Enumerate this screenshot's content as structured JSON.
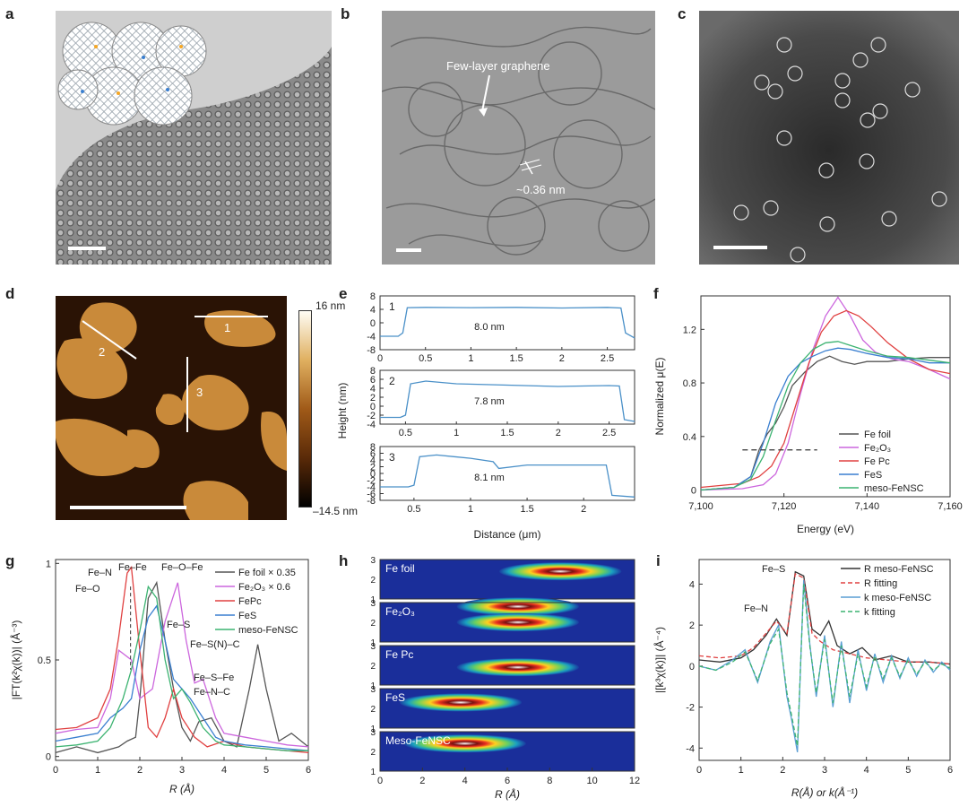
{
  "panels": {
    "a": "a",
    "b": "b",
    "c": "c",
    "d": "d",
    "e": "e",
    "f": "f",
    "g": "g",
    "h": "h",
    "i": "i"
  },
  "panel_b": {
    "annot1": "Few-layer graphene",
    "annot2": "~0.36 nm"
  },
  "panel_d": {
    "scale_top": "16 nm",
    "scale_bottom": "–14.5 nm",
    "line_labels": [
      "1",
      "2",
      "3"
    ]
  },
  "colors": {
    "foil": "#555555",
    "fe2o3": "#cc66dd",
    "fepc": "#e04040",
    "fes": "#3a7fd0",
    "meso": "#3cb371",
    "trace": "#4a90c8"
  },
  "chart_data": [
    {
      "panel": "e",
      "type": "line",
      "xlabel": "Distance (μm)",
      "ylabel": "Height (nm)",
      "subplots": [
        {
          "id": "1",
          "label": "8.0 nm",
          "xlim": [
            0,
            2.8
          ],
          "ylim": [
            -8,
            8
          ],
          "xticks": [
            0,
            0.5,
            1.0,
            1.5,
            2.0,
            2.5
          ],
          "yticks": [
            8,
            4,
            0,
            -4,
            -8
          ],
          "x": [
            0,
            0.2,
            0.25,
            0.3,
            0.5,
            1.0,
            1.5,
            2.0,
            2.5,
            2.65,
            2.7,
            2.8
          ],
          "y": [
            -4,
            -4,
            -3,
            4.5,
            4.6,
            4.5,
            4.6,
            4.4,
            4.6,
            4.4,
            -3,
            -4.5
          ]
        },
        {
          "id": "2",
          "label": "7.8 nm",
          "xlim": [
            0.25,
            2.75
          ],
          "ylim": [
            -4,
            8
          ],
          "xticks": [
            0.5,
            1.0,
            1.5,
            2.0,
            2.5
          ],
          "yticks": [
            8,
            6,
            4,
            2,
            0,
            -2,
            -4
          ],
          "x": [
            0.25,
            0.45,
            0.5,
            0.55,
            0.7,
            1.0,
            1.5,
            2.0,
            2.5,
            2.6,
            2.65,
            2.75
          ],
          "y": [
            -2.5,
            -2.5,
            -2,
            5,
            5.6,
            5,
            4.7,
            4.4,
            4.6,
            4.5,
            -3,
            -3.4
          ]
        },
        {
          "id": "3",
          "label": "8.1 nm",
          "xlim": [
            0.2,
            2.45
          ],
          "ylim": [
            -8,
            8
          ],
          "xticks": [
            0.5,
            1.0,
            1.5,
            2.0
          ],
          "yticks": [
            8,
            6,
            4,
            2,
            0,
            -2,
            -4,
            -6,
            -8
          ],
          "x": [
            0.2,
            0.45,
            0.5,
            0.55,
            0.7,
            1.0,
            1.2,
            1.25,
            1.5,
            2.0,
            2.2,
            2.25,
            2.45
          ],
          "y": [
            -4,
            -4,
            -3.5,
            5,
            5.5,
            4.5,
            3.5,
            1.5,
            2.5,
            2.5,
            2.5,
            -6.5,
            -7
          ]
        }
      ]
    },
    {
      "panel": "f",
      "type": "line",
      "xlabel": "Energy (eV)",
      "ylabel": "Normalized μ(E)",
      "xlim": [
        7100,
        7160
      ],
      "ylim": [
        -0.05,
        1.45
      ],
      "xticks": [
        7100,
        7120,
        7140,
        7160
      ],
      "xtick_labels": [
        "7,100",
        "7,120",
        "7,140",
        "7,160"
      ],
      "yticks": [
        0,
        0.4,
        0.8,
        1.2
      ],
      "legend": "bottom-right",
      "series": [
        {
          "name": "Fe foil",
          "color": "#555555",
          "x": [
            7100,
            7108,
            7112,
            7114,
            7116,
            7118,
            7120,
            7122,
            7125,
            7128,
            7131,
            7134,
            7137,
            7140,
            7145,
            7150,
            7155,
            7160
          ],
          "y": [
            0,
            0.02,
            0.1,
            0.3,
            0.42,
            0.5,
            0.62,
            0.78,
            0.88,
            0.96,
            1.0,
            0.96,
            0.94,
            0.96,
            0.96,
            0.98,
            0.99,
            0.99
          ]
        },
        {
          "name": "Fe₂O₃",
          "color": "#cc66dd",
          "x": [
            7100,
            7110,
            7115,
            7118,
            7121,
            7124,
            7127,
            7130,
            7133,
            7136,
            7139,
            7142,
            7146,
            7150,
            7155,
            7160
          ],
          "y": [
            0,
            0.01,
            0.04,
            0.12,
            0.35,
            0.72,
            1.05,
            1.3,
            1.44,
            1.3,
            1.12,
            1.03,
            0.98,
            0.96,
            0.9,
            0.83
          ]
        },
        {
          "name": "Fe Pc",
          "color": "#e04040",
          "x": [
            7100,
            7110,
            7114,
            7117,
            7120,
            7123,
            7126,
            7129,
            7132,
            7135,
            7138,
            7141,
            7145,
            7150,
            7155,
            7160
          ],
          "y": [
            0.02,
            0.05,
            0.1,
            0.18,
            0.35,
            0.65,
            0.95,
            1.18,
            1.3,
            1.34,
            1.3,
            1.22,
            1.1,
            0.98,
            0.9,
            0.87
          ]
        },
        {
          "name": "FeS",
          "color": "#3a7fd0",
          "x": [
            7100,
            7108,
            7112,
            7115,
            7118,
            7121,
            7124,
            7127,
            7130,
            7133,
            7136,
            7140,
            7145,
            7150,
            7155,
            7160
          ],
          "y": [
            0,
            0.02,
            0.1,
            0.35,
            0.65,
            0.85,
            0.95,
            1.0,
            1.04,
            1.06,
            1.05,
            1.02,
            0.99,
            0.98,
            0.95,
            0.95
          ]
        },
        {
          "name": "meso-FeNSC",
          "color": "#3cb371",
          "x": [
            7100,
            7108,
            7112,
            7115,
            7118,
            7121,
            7124,
            7127,
            7130,
            7133,
            7136,
            7140,
            7145,
            7150,
            7155,
            7160
          ],
          "y": [
            0,
            0.02,
            0.08,
            0.25,
            0.52,
            0.78,
            0.95,
            1.05,
            1.1,
            1.11,
            1.08,
            1.04,
            1.0,
            0.99,
            0.97,
            0.95
          ]
        }
      ],
      "reference_line": {
        "y": 0.3,
        "x": [
          7110,
          7128
        ],
        "style": "dashed"
      }
    },
    {
      "panel": "g",
      "type": "line",
      "xlabel": "R (Å)",
      "ylabel": "|FT(k²χ(k))| (Å⁻³)",
      "xlim": [
        0,
        6
      ],
      "ylim": [
        -0.02,
        1.02
      ],
      "xticks": [
        0,
        1,
        2,
        3,
        4,
        5,
        6
      ],
      "yticks": [
        0,
        0.5,
        1.0
      ],
      "legend": "top-right",
      "series": [
        {
          "name": "Fe foil × 0.35",
          "color": "#555555",
          "x": [
            0,
            0.5,
            1.0,
            1.5,
            1.7,
            1.9,
            2.0,
            2.2,
            2.4,
            2.6,
            2.8,
            3.0,
            3.2,
            3.4,
            3.7,
            4.0,
            4.3,
            4.6,
            4.8,
            5.0,
            5.3,
            5.6,
            6.0
          ],
          "y": [
            0.02,
            0.05,
            0.02,
            0.05,
            0.08,
            0.1,
            0.3,
            0.82,
            0.9,
            0.6,
            0.35,
            0.15,
            0.08,
            0.18,
            0.2,
            0.08,
            0.05,
            0.35,
            0.58,
            0.35,
            0.08,
            0.12,
            0.05
          ]
        },
        {
          "name": "Fe₂O₃ × 0.6",
          "color": "#cc66dd",
          "x": [
            0,
            0.5,
            1.0,
            1.3,
            1.5,
            1.8,
            2.0,
            2.3,
            2.6,
            2.9,
            3.1,
            3.3,
            3.5,
            3.8,
            4.0,
            4.5,
            5.0,
            5.5,
            6.0
          ],
          "y": [
            0.12,
            0.14,
            0.15,
            0.3,
            0.55,
            0.5,
            0.3,
            0.35,
            0.7,
            0.9,
            0.6,
            0.38,
            0.4,
            0.2,
            0.12,
            0.1,
            0.08,
            0.06,
            0.05
          ]
        },
        {
          "name": "FePc",
          "color": "#e04040",
          "x": [
            0,
            0.5,
            1.0,
            1.3,
            1.5,
            1.7,
            1.8,
            2.0,
            2.2,
            2.4,
            2.6,
            2.8,
            3.0,
            3.3,
            3.6,
            4.0,
            4.5,
            5.0,
            5.5,
            6.0
          ],
          "y": [
            0.14,
            0.15,
            0.2,
            0.35,
            0.62,
            0.95,
            0.98,
            0.55,
            0.15,
            0.1,
            0.2,
            0.35,
            0.2,
            0.1,
            0.05,
            0.08,
            0.05,
            0.04,
            0.03,
            0.02
          ]
        },
        {
          "name": "FeS",
          "color": "#3a7fd0",
          "x": [
            0,
            0.5,
            1.0,
            1.3,
            1.6,
            1.8,
            2.0,
            2.2,
            2.4,
            2.6,
            2.8,
            3.0,
            3.2,
            3.5,
            3.8,
            4.0,
            4.5,
            5.0,
            5.5,
            6.0
          ],
          "y": [
            0.08,
            0.1,
            0.12,
            0.2,
            0.25,
            0.3,
            0.55,
            0.72,
            0.78,
            0.6,
            0.4,
            0.35,
            0.3,
            0.2,
            0.1,
            0.08,
            0.06,
            0.05,
            0.04,
            0.03
          ]
        },
        {
          "name": "meso-FeNSC",
          "color": "#3cb371",
          "x": [
            0,
            0.5,
            1.0,
            1.3,
            1.6,
            1.8,
            2.0,
            2.2,
            2.4,
            2.6,
            2.8,
            3.0,
            3.2,
            3.5,
            3.8,
            4.0,
            4.5,
            5.0,
            5.5,
            6.0
          ],
          "y": [
            0.05,
            0.06,
            0.08,
            0.15,
            0.3,
            0.45,
            0.65,
            0.88,
            0.82,
            0.5,
            0.3,
            0.35,
            0.28,
            0.15,
            0.08,
            0.06,
            0.05,
            0.04,
            0.03,
            0.03
          ]
        }
      ],
      "annotations": [
        "Fe–N",
        "Fe–O",
        "Fe–Fe",
        "Fe–O–Fe",
        "Fe–S",
        "Fe–S(N)–C",
        "Fe–S–Fe",
        "Fe–N–C"
      ]
    },
    {
      "panel": "h",
      "type": "heatmap",
      "xlabel": "R (Å)",
      "xlim": [
        0,
        12
      ],
      "xticks": [
        0,
        2,
        4,
        6,
        8,
        10,
        12
      ],
      "ylim": [
        1,
        3
      ],
      "yticks": [
        1,
        2,
        3
      ],
      "rows": [
        {
          "name": "Fe foil",
          "hotspots": [
            {
              "r": 8.5,
              "k": 2.4
            }
          ]
        },
        {
          "name": "Fe₂O₃",
          "hotspots": [
            {
              "r": 6.5,
              "k": 2.8
            },
            {
              "r": 6.5,
              "k": 2.0
            }
          ]
        },
        {
          "name": "Fe Pc",
          "hotspots": [
            {
              "r": 6.5,
              "k": 1.9
            }
          ]
        },
        {
          "name": "FeS",
          "hotspots": [
            {
              "r": 3.8,
              "k": 2.3
            }
          ]
        },
        {
          "name": "Meso-FeNSC",
          "hotspots": [
            {
              "r": 4.0,
              "k": 2.4
            }
          ]
        }
      ]
    },
    {
      "panel": "i",
      "type": "line",
      "xlabel": "R(Å) or k(Å⁻¹)",
      "ylabel": "|[k³χ(k)]| (Å⁻⁴)",
      "xlim": [
        0,
        6
      ],
      "ylim": [
        -4.6,
        5.2
      ],
      "xticks": [
        0,
        1,
        2,
        3,
        4,
        5,
        6
      ],
      "yticks": [
        -4,
        -2,
        0,
        2,
        4
      ],
      "legend": "top-right",
      "series": [
        {
          "name": "R meso-FeNSC",
          "color": "#333333",
          "style": "solid",
          "x": [
            0,
            0.5,
            1.0,
            1.3,
            1.6,
            1.85,
            2.1,
            2.3,
            2.5,
            2.7,
            2.9,
            3.1,
            3.3,
            3.6,
            3.9,
            4.2,
            4.6,
            5.0,
            5.5,
            6.0
          ],
          "y": [
            0.3,
            0.2,
            0.4,
            0.8,
            1.5,
            2.3,
            1.5,
            4.6,
            4.4,
            1.8,
            1.5,
            2.2,
            1.0,
            0.6,
            0.9,
            0.3,
            0.5,
            0.2,
            0.2,
            0.1
          ]
        },
        {
          "name": "R fitting",
          "color": "#e04040",
          "style": "dashed",
          "x": [
            0,
            0.5,
            1.0,
            1.3,
            1.6,
            1.85,
            2.1,
            2.3,
            2.5,
            2.7,
            2.9,
            3.2,
            3.6,
            4.0,
            4.5,
            5.0,
            5.5,
            6.0
          ],
          "y": [
            0.5,
            0.4,
            0.5,
            0.9,
            1.6,
            2.2,
            1.6,
            4.5,
            4.3,
            1.6,
            1.2,
            0.8,
            0.6,
            0.4,
            0.3,
            0.2,
            0.2,
            0.1
          ]
        },
        {
          "name": "k meso-FeNSC",
          "color": "#5a9ed4",
          "style": "solid",
          "x": [
            0,
            0.4,
            0.8,
            1.1,
            1.4,
            1.7,
            1.9,
            2.1,
            2.2,
            2.35,
            2.5,
            2.65,
            2.8,
            3.0,
            3.2,
            3.4,
            3.6,
            3.8,
            4.0,
            4.2,
            4.4,
            4.6,
            4.8,
            5.0,
            5.2,
            5.4,
            5.6,
            5.8,
            6.0
          ],
          "y": [
            0,
            -0.2,
            0.3,
            0.8,
            -0.8,
            1.2,
            2.0,
            -1.5,
            -2.5,
            -4.2,
            4.2,
            1.0,
            -1.5,
            1.5,
            -2.0,
            1.2,
            -1.8,
            0.8,
            -1.2,
            0.6,
            -0.8,
            0.5,
            -0.6,
            0.4,
            -0.5,
            0.3,
            -0.3,
            0.2,
            -0.2
          ]
        },
        {
          "name": "k fitting",
          "color": "#3cb371",
          "style": "dashed",
          "x": [
            0,
            0.4,
            0.8,
            1.1,
            1.4,
            1.7,
            1.9,
            2.1,
            2.2,
            2.35,
            2.5,
            2.65,
            2.8,
            3.0,
            3.2,
            3.4,
            3.6,
            3.8,
            4.0,
            4.2,
            4.4,
            4.6,
            4.8,
            5.0,
            5.2,
            5.4,
            5.6,
            5.8,
            6.0
          ],
          "y": [
            0,
            -0.2,
            0.2,
            0.7,
            -0.7,
            1.1,
            1.8,
            -1.3,
            -2.3,
            -3.9,
            4.0,
            0.9,
            -1.3,
            1.3,
            -1.8,
            1.0,
            -1.5,
            0.6,
            -1.0,
            0.5,
            -0.6,
            0.4,
            -0.5,
            0.3,
            -0.4,
            0.2,
            -0.2,
            0.1,
            -0.1
          ]
        }
      ],
      "annotations": [
        "Fe–S",
        "Fe–N"
      ]
    }
  ]
}
